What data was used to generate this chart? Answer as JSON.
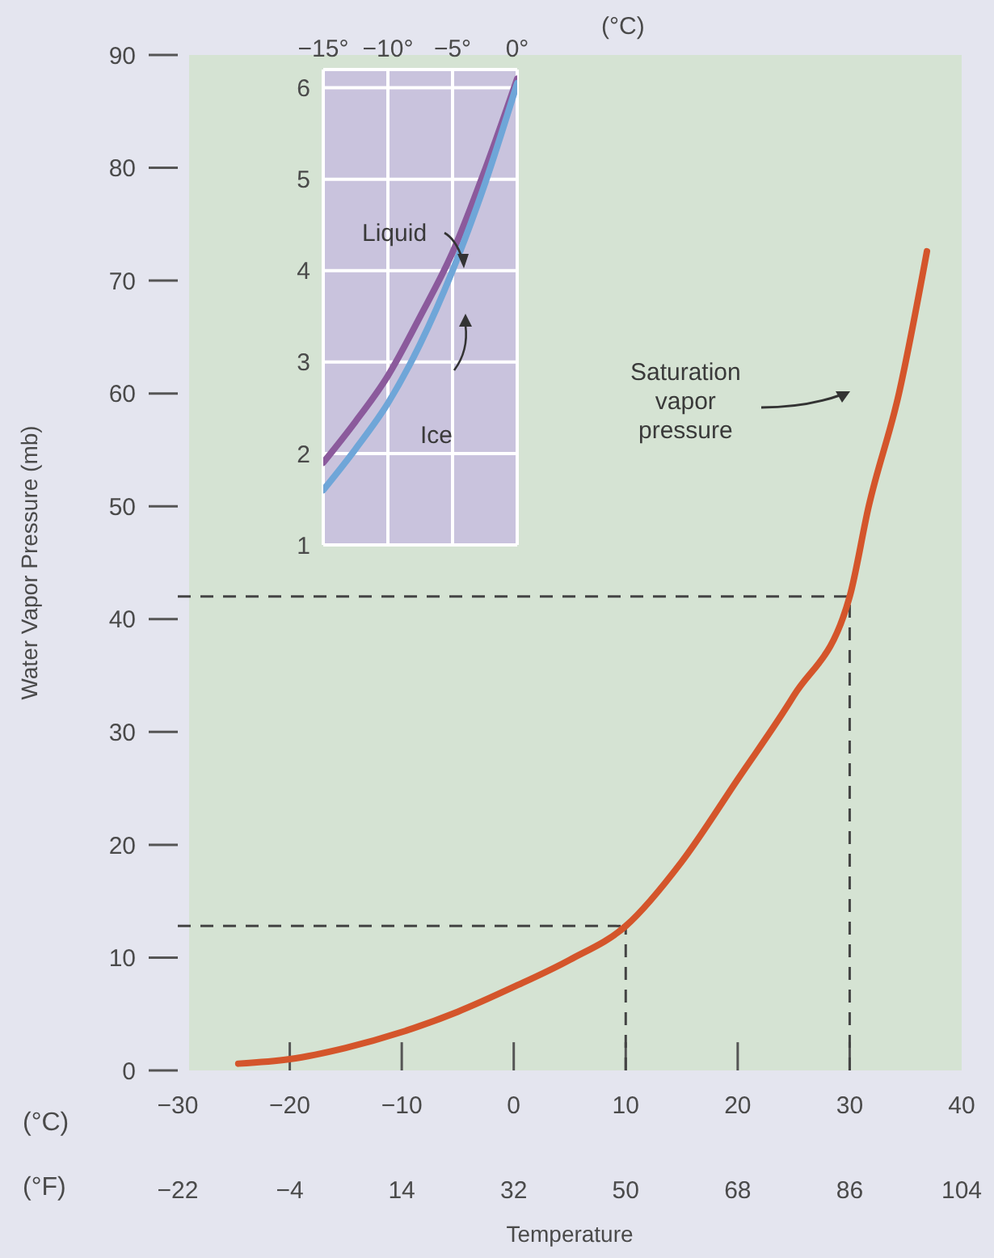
{
  "chart_data": [
    {
      "type": "line",
      "ylabel": "Water Vapor Pressure (mb)",
      "xlabel": "Temperature",
      "x": [
        -24.6,
        -20,
        -15,
        -10,
        -5,
        0,
        5,
        10,
        15,
        20,
        25,
        30,
        31.7,
        34.4,
        36.9
      ],
      "series": [
        {
          "name": "Saturation vapor pressure",
          "color": "#d4552b",
          "values": [
            0.6,
            1,
            2,
            3.4,
            5.2,
            7.4,
            9.8,
            12.8,
            18.5,
            25.8,
            33.2,
            42,
            50,
            60,
            72.6
          ]
        }
      ],
      "xlim": [
        -30,
        40
      ],
      "xticks": [
        {
          "value": -30,
          "label": "−30"
        },
        {
          "value": -20,
          "label": "−20"
        },
        {
          "value": -10,
          "label": "−10"
        },
        0,
        10,
        20,
        30,
        40
      ],
      "x2lim": [
        -22,
        104
      ],
      "x2ticks": [
        {
          "value": -22,
          "label": "−22"
        },
        {
          "value": -4,
          "label": "−4"
        },
        14,
        32,
        50,
        68,
        86,
        104
      ],
      "ylim": [
        0,
        90
      ],
      "yticks": [
        0,
        10,
        20,
        30,
        40,
        50,
        60,
        70,
        80,
        90
      ],
      "ref_lines": [
        {
          "axis": "y",
          "value": 42,
          "color": "#444444",
          "line_style": "dashed"
        },
        {
          "axis": "x",
          "value": 30,
          "color": "#444444",
          "line_style": "dashed"
        },
        {
          "axis": "y",
          "value": 12.8,
          "color": "#444444",
          "line_style": "dashed"
        },
        {
          "axis": "x",
          "value": 10,
          "color": "#444444",
          "line_style": "dashed"
        }
      ],
      "annotations": [
        "(°C)",
        "(°F)"
      ],
      "grid": false
    },
    {
      "type": "line",
      "xlabel": "(°C)",
      "x": [
        -15,
        -12.5,
        -10,
        -7.5,
        -5,
        -2.5,
        0
      ],
      "series": [
        {
          "name": "Liquid",
          "color": "#8b5a9c",
          "values": [
            1.9,
            2.35,
            2.85,
            3.5,
            4.2,
            5.1,
            6.1
          ]
        },
        {
          "name": "Ice",
          "color": "#6fa6d8",
          "values": [
            1.6,
            2.05,
            2.55,
            3.2,
            4,
            4.95,
            6.05
          ]
        }
      ],
      "xlim": [
        -15,
        0
      ],
      "xticks": [
        {
          "value": -15,
          "label": "−15°"
        },
        {
          "value": -10,
          "label": "−10°"
        },
        {
          "value": -5,
          "label": "−5°"
        },
        {
          "value": 0,
          "label": "0°"
        }
      ],
      "ylim": [
        1,
        6.2
      ],
      "yticks": [
        1,
        2,
        3,
        4,
        5,
        6
      ],
      "grid": true
    }
  ]
}
